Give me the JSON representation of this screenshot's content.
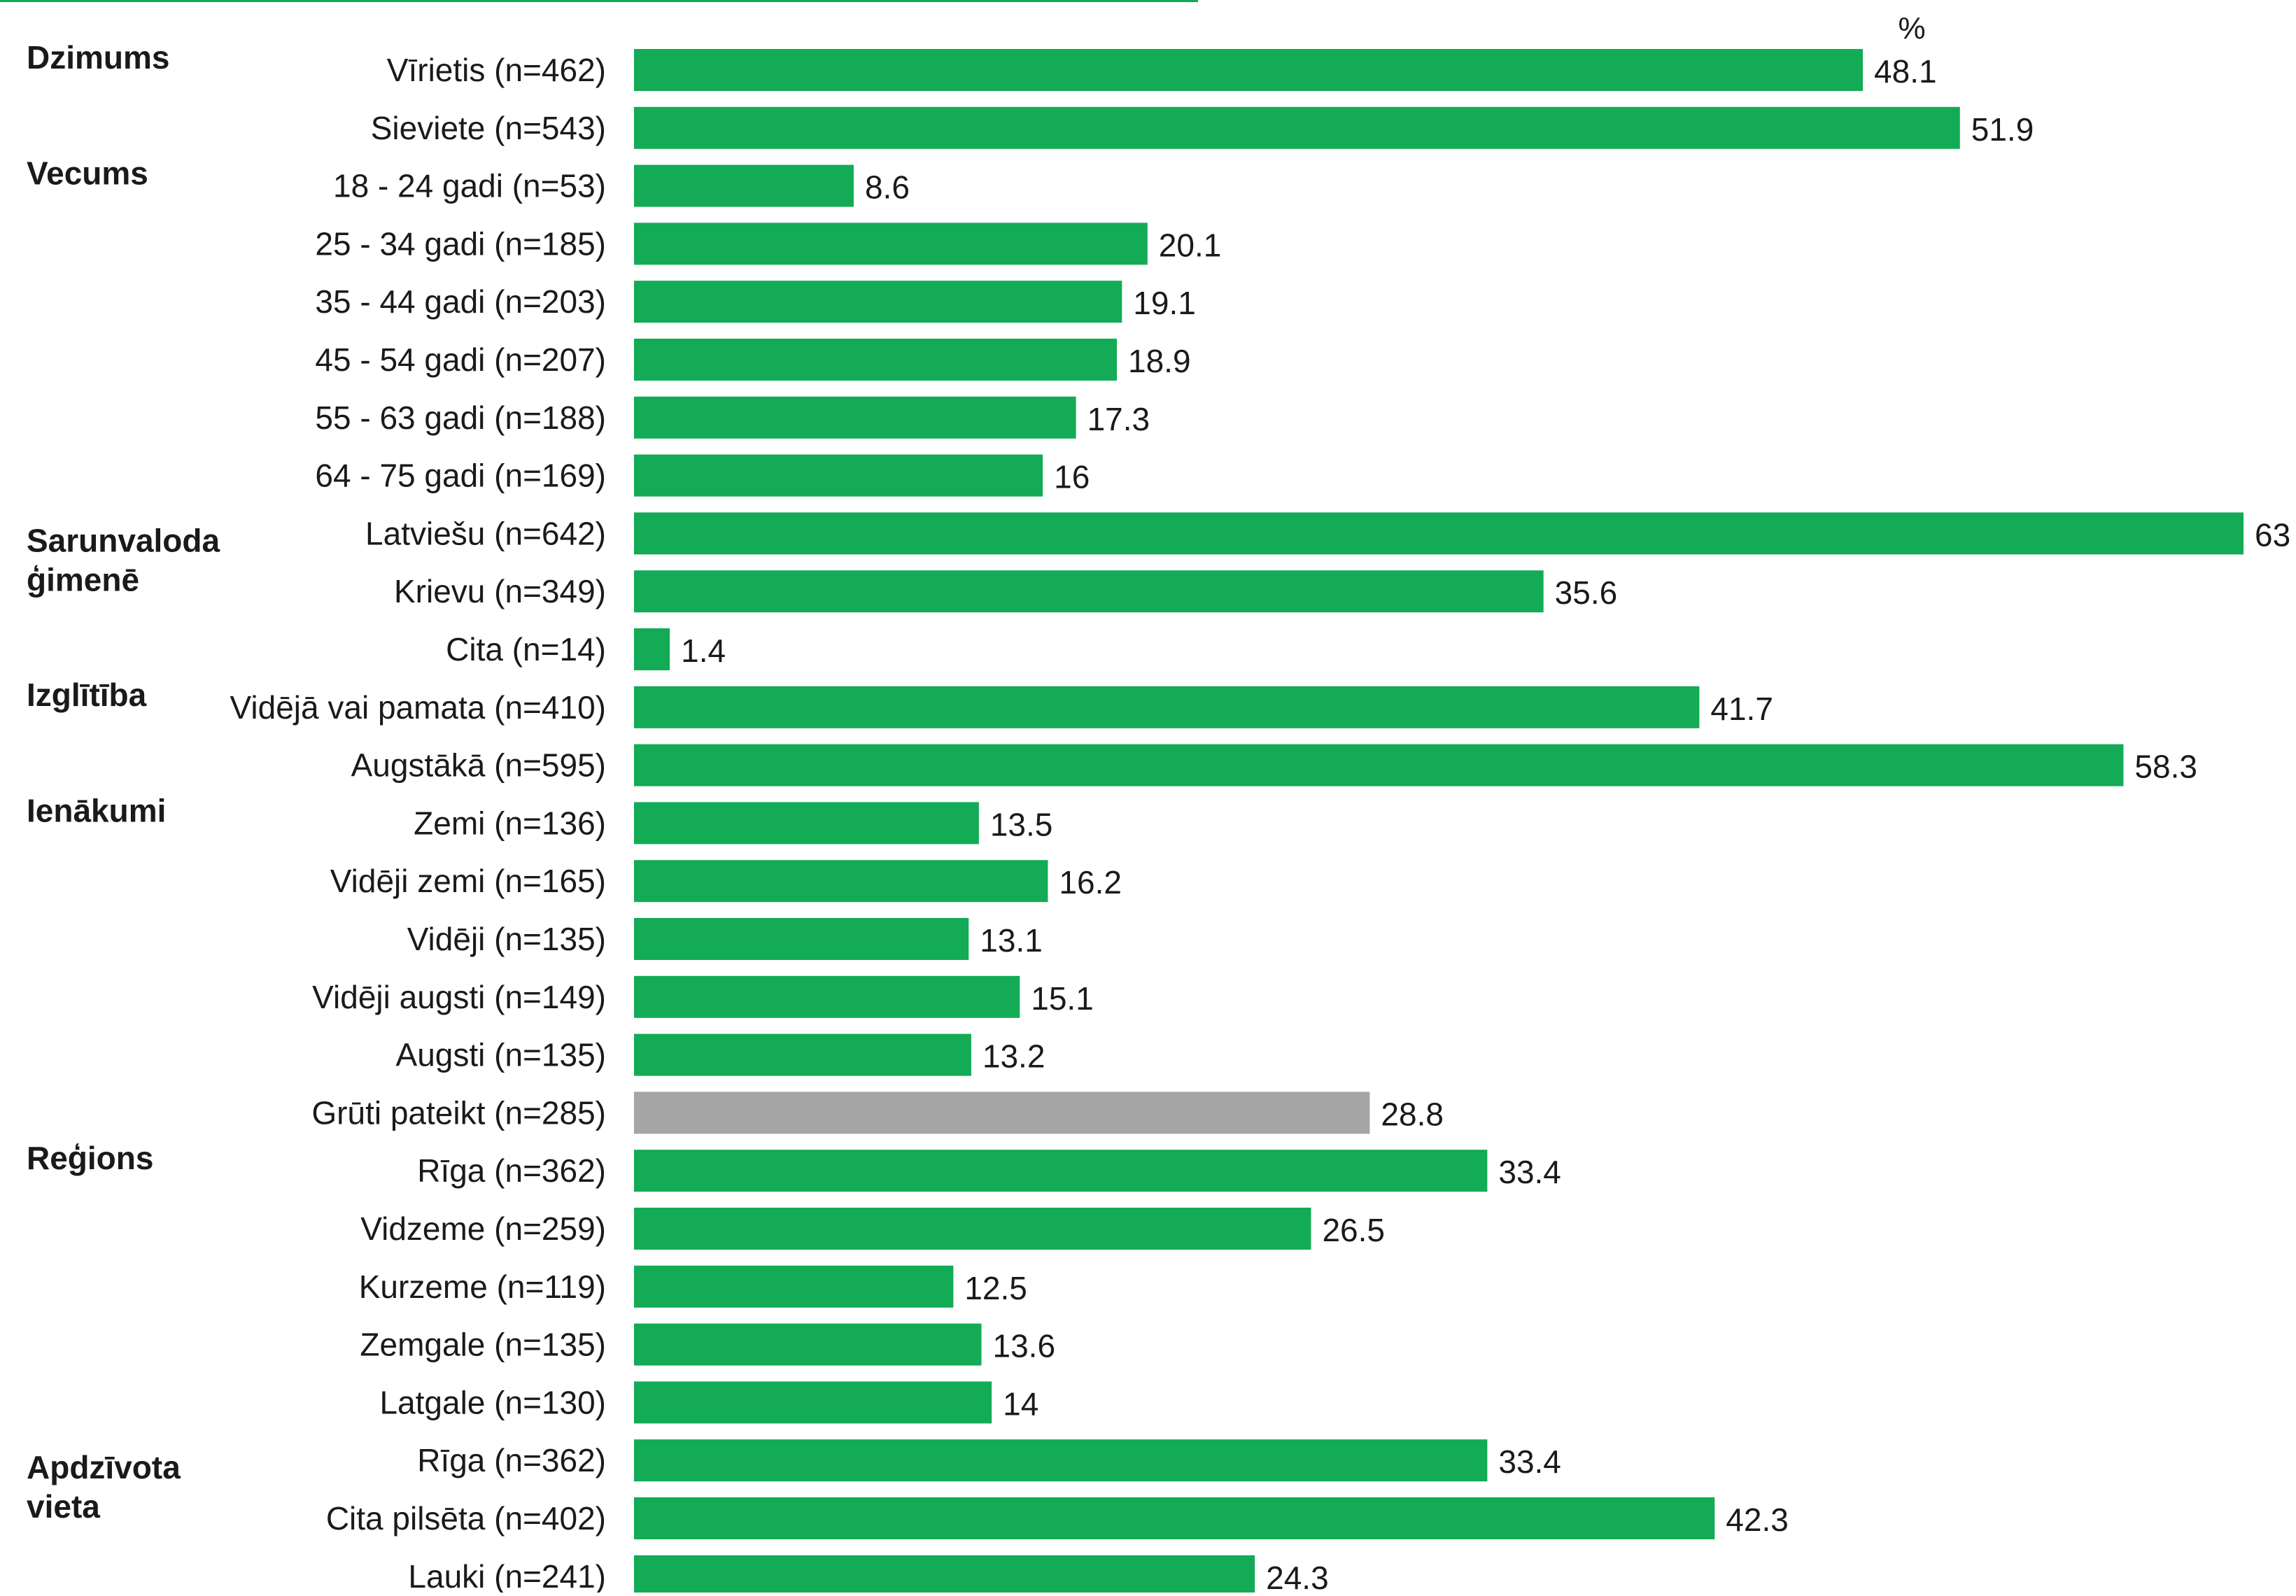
{
  "chart_data": {
    "type": "bar",
    "orientation": "horizontal",
    "unit_label": "%",
    "xlim": [
      0,
      63
    ],
    "grid": false,
    "colors": {
      "bar": "#13ab55",
      "bar_muted": "#a6a6a6",
      "top_rule": "#13ab55",
      "text": "#1a1a1a"
    },
    "groups": [
      {
        "label": "Dzimums",
        "rows": [
          {
            "category": "Vīrietis (n=462)",
            "value": 48.1,
            "label": "48.1"
          },
          {
            "category": "Sieviete (n=543)",
            "value": 51.9,
            "label": "51.9"
          }
        ]
      },
      {
        "label": "Vecums",
        "rows": [
          {
            "category": "18 - 24 gadi (n=53)",
            "value": 8.6,
            "label": "8.6"
          },
          {
            "category": "25 - 34 gadi (n=185)",
            "value": 20.1,
            "label": "20.1"
          },
          {
            "category": "35 - 44 gadi (n=203)",
            "value": 19.1,
            "label": "19.1"
          },
          {
            "category": "45 - 54 gadi (n=207)",
            "value": 18.9,
            "label": "18.9"
          },
          {
            "category": "55 - 63 gadi (n=188)",
            "value": 17.3,
            "label": "17.3"
          },
          {
            "category": "64 - 75 gadi (n=169)",
            "value": 16,
            "label": "16"
          }
        ]
      },
      {
        "label": "Sarunvaloda ģimenē",
        "rows": [
          {
            "category": "Latviešu (n=642)",
            "value": 63,
            "label": "63"
          },
          {
            "category": "Krievu (n=349)",
            "value": 35.6,
            "label": "35.6"
          },
          {
            "category": "Cita (n=14)",
            "value": 1.4,
            "label": "1.4"
          }
        ]
      },
      {
        "label": "Izglītība",
        "rows": [
          {
            "category": "Vidējā vai pamata (n=410)",
            "value": 41.7,
            "label": "41.7"
          },
          {
            "category": "Augstākā (n=595)",
            "value": 58.3,
            "label": "58.3"
          }
        ]
      },
      {
        "label": "Ienākumi",
        "rows": [
          {
            "category": "Zemi  (n=136)",
            "value": 13.5,
            "label": "13.5"
          },
          {
            "category": "Vidēji zemi  (n=165)",
            "value": 16.2,
            "label": "16.2"
          },
          {
            "category": "Vidēji (n=135)",
            "value": 13.1,
            "label": "13.1"
          },
          {
            "category": "Vidēji augsti (n=149)",
            "value": 15.1,
            "label": "15.1"
          },
          {
            "category": "Augsti  (n=135)",
            "value": 13.2,
            "label": "13.2"
          },
          {
            "category": "Grūti pateikt (n=285)",
            "value": 28.8,
            "label": "28.8",
            "muted": true
          }
        ]
      },
      {
        "label": "Reģions",
        "rows": [
          {
            "category": "Rīga (n=362)",
            "value": 33.4,
            "label": "33.4"
          },
          {
            "category": "Vidzeme (n=259)",
            "value": 26.5,
            "label": "26.5"
          },
          {
            "category": "Kurzeme (n=119)",
            "value": 12.5,
            "label": "12.5"
          },
          {
            "category": "Zemgale (n=135)",
            "value": 13.6,
            "label": "13.6"
          },
          {
            "category": "Latgale (n=130)",
            "value": 14,
            "label": "14"
          }
        ]
      },
      {
        "label": "Apdzīvota vieta",
        "rows": [
          {
            "category": "Rīga (n=362)",
            "value": 33.4,
            "label": "33.4"
          },
          {
            "category": "Cita pilsēta (n=402)",
            "value": 42.3,
            "label": "42.3"
          },
          {
            "category": "Lauki (n=241)",
            "value": 24.3,
            "label": "24.3"
          }
        ]
      }
    ]
  }
}
